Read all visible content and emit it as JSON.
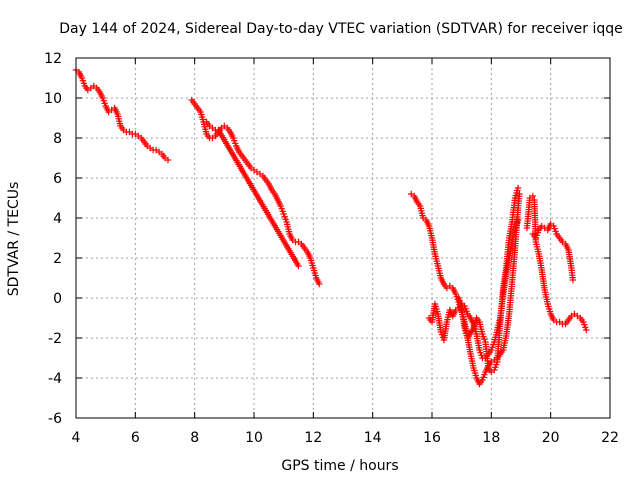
{
  "chart_data": {
    "type": "scatter",
    "title": "Day 144 of 2024, Sidereal Day-to-day VTEC variation (SDTVAR) for receiver iqqe",
    "xlabel": "GPS time / hours",
    "ylabel": "SDTVAR / TECUs",
    "xlim": [
      4,
      22
    ],
    "ylim": [
      -6,
      12
    ],
    "xticks": [
      4,
      6,
      8,
      10,
      12,
      14,
      16,
      18,
      20,
      22
    ],
    "yticks": [
      -6,
      -4,
      -2,
      0,
      2,
      4,
      6,
      8,
      10,
      12
    ],
    "xtick_labels": [
      "4",
      "6",
      "8",
      "10",
      "12",
      "14",
      "16",
      "18",
      "20",
      "22"
    ],
    "ytick_labels": [
      "-6",
      "-4",
      "-2",
      "0",
      "2",
      "4",
      "6",
      "8",
      "10",
      "12"
    ],
    "grid": true,
    "marker": "+",
    "color": "#ff0000",
    "series": [
      {
        "name": "segment-1",
        "points": [
          [
            4.0,
            11.4
          ],
          [
            4.1,
            11.3
          ],
          [
            4.2,
            11.0
          ],
          [
            4.3,
            10.6
          ],
          [
            4.4,
            10.4
          ],
          [
            4.5,
            10.5
          ],
          [
            4.6,
            10.6
          ],
          [
            4.7,
            10.5
          ],
          [
            4.8,
            10.3
          ],
          [
            4.9,
            10.0
          ],
          [
            5.0,
            9.6
          ],
          [
            5.1,
            9.3
          ],
          [
            5.2,
            9.4
          ],
          [
            5.3,
            9.5
          ],
          [
            5.4,
            9.2
          ],
          [
            5.5,
            8.6
          ],
          [
            5.6,
            8.4
          ],
          [
            5.7,
            8.3
          ],
          [
            5.8,
            8.3
          ],
          [
            5.9,
            8.2
          ],
          [
            6.0,
            8.2
          ],
          [
            6.1,
            8.1
          ],
          [
            6.2,
            8.0
          ],
          [
            6.3,
            7.8
          ],
          [
            6.4,
            7.6
          ],
          [
            6.5,
            7.5
          ],
          [
            6.6,
            7.4
          ],
          [
            6.7,
            7.4
          ],
          [
            6.8,
            7.3
          ],
          [
            6.9,
            7.2
          ],
          [
            7.0,
            7.0
          ],
          [
            7.1,
            6.9
          ]
        ]
      },
      {
        "name": "segment-2",
        "points": [
          [
            7.9,
            9.9
          ],
          [
            8.0,
            9.7
          ],
          [
            8.1,
            9.5
          ],
          [
            8.2,
            9.3
          ],
          [
            8.3,
            8.8
          ],
          [
            8.4,
            8.2
          ],
          [
            8.5,
            8.0
          ],
          [
            8.6,
            8.0
          ],
          [
            8.7,
            8.1
          ],
          [
            8.8,
            8.3
          ],
          [
            8.9,
            8.5
          ],
          [
            9.0,
            8.6
          ],
          [
            9.1,
            8.5
          ],
          [
            9.2,
            8.3
          ],
          [
            9.3,
            8.0
          ],
          [
            9.4,
            7.6
          ],
          [
            9.5,
            7.3
          ],
          [
            9.6,
            7.1
          ],
          [
            9.7,
            6.9
          ],
          [
            9.8,
            6.7
          ],
          [
            9.9,
            6.5
          ],
          [
            10.0,
            6.4
          ],
          [
            10.1,
            6.3
          ],
          [
            10.2,
            6.2
          ],
          [
            10.3,
            6.1
          ],
          [
            10.4,
            5.9
          ],
          [
            10.5,
            5.7
          ],
          [
            10.6,
            5.4
          ],
          [
            10.7,
            5.2
          ],
          [
            10.8,
            4.9
          ],
          [
            10.9,
            4.6
          ],
          [
            11.0,
            4.2
          ],
          [
            11.1,
            3.8
          ],
          [
            11.2,
            3.2
          ],
          [
            11.3,
            2.9
          ],
          [
            11.4,
            2.8
          ],
          [
            11.5,
            2.8
          ],
          [
            11.6,
            2.7
          ],
          [
            11.7,
            2.5
          ],
          [
            11.8,
            2.3
          ],
          [
            11.9,
            2.0
          ],
          [
            12.0,
            1.5
          ],
          [
            12.1,
            1.0
          ],
          [
            12.2,
            0.7
          ]
        ]
      },
      {
        "name": "segment-2-branch",
        "points": [
          [
            8.4,
            8.8
          ],
          [
            8.5,
            8.6
          ],
          [
            8.6,
            8.5
          ],
          [
            8.7,
            8.4
          ],
          [
            8.8,
            8.4
          ],
          [
            11.5,
            1.6
          ]
        ]
      },
      {
        "name": "segment-3",
        "points": [
          [
            15.3,
            5.2
          ],
          [
            15.4,
            5.1
          ],
          [
            15.5,
            4.8
          ],
          [
            15.6,
            4.6
          ],
          [
            15.7,
            4.0
          ],
          [
            15.8,
            3.9
          ],
          [
            15.9,
            3.6
          ],
          [
            16.0,
            3.0
          ],
          [
            16.1,
            2.2
          ],
          [
            16.2,
            1.6
          ],
          [
            16.3,
            1.0
          ],
          [
            16.4,
            0.7
          ],
          [
            16.5,
            0.5
          ],
          [
            16.6,
            0.6
          ],
          [
            16.7,
            0.5
          ],
          [
            16.8,
            0.2
          ],
          [
            16.9,
            -0.2
          ],
          [
            17.0,
            -0.7
          ],
          [
            17.1,
            -1.2
          ],
          [
            17.2,
            -2.0
          ],
          [
            17.3,
            -2.8
          ],
          [
            17.4,
            -3.5
          ],
          [
            17.5,
            -4.0
          ],
          [
            17.6,
            -4.3
          ],
          [
            17.7,
            -4.1
          ],
          [
            17.8,
            -3.7
          ],
          [
            17.9,
            -3.4
          ],
          [
            18.0,
            -3.2
          ],
          [
            18.1,
            -3.1
          ],
          [
            18.2,
            -3.0
          ],
          [
            18.3,
            -2.8
          ],
          [
            18.4,
            -2.6
          ],
          [
            18.5,
            -1.9
          ],
          [
            18.6,
            -0.8
          ],
          [
            18.7,
            0.8
          ],
          [
            18.8,
            2.5
          ],
          [
            18.85,
            3.5
          ],
          [
            18.9,
            4.5
          ],
          [
            18.95,
            5.2
          ]
        ]
      },
      {
        "name": "segment-3-lower",
        "points": [
          [
            15.9,
            -1.0
          ],
          [
            16.0,
            -1.2
          ],
          [
            16.1,
            -0.3
          ],
          [
            16.2,
            -0.8
          ],
          [
            16.3,
            -1.7
          ],
          [
            16.4,
            -2.1
          ],
          [
            16.5,
            -1.2
          ],
          [
            16.6,
            -0.6
          ],
          [
            16.7,
            -0.9
          ],
          [
            16.8,
            -0.6
          ],
          [
            16.9,
            -0.5
          ],
          [
            17.0,
            -0.3
          ],
          [
            17.1,
            -0.4
          ],
          [
            17.2,
            -0.8
          ],
          [
            17.3,
            -1.0
          ],
          [
            17.4,
            -1.3
          ],
          [
            17.5,
            -1.8
          ],
          [
            17.6,
            -2.6
          ],
          [
            17.7,
            -3.0
          ],
          [
            17.8,
            -3.0
          ],
          [
            17.9,
            -2.8
          ],
          [
            18.0,
            -2.6
          ],
          [
            18.1,
            -2.2
          ],
          [
            18.2,
            -1.6
          ],
          [
            18.3,
            -1.0
          ],
          [
            18.4,
            0.2
          ],
          [
            18.5,
            1.2
          ],
          [
            18.6,
            2.0
          ],
          [
            18.7,
            2.8
          ],
          [
            18.8,
            3.4
          ],
          [
            18.9,
            3.9
          ]
        ]
      },
      {
        "name": "segment-3-mid",
        "points": [
          [
            16.9,
            0.0
          ],
          [
            17.0,
            -0.5
          ],
          [
            17.1,
            -1.5
          ],
          [
            17.2,
            -2.0
          ],
          [
            17.4,
            -1.5
          ],
          [
            17.5,
            -1.0
          ],
          [
            17.6,
            -1.2
          ],
          [
            17.7,
            -1.8
          ],
          [
            17.8,
            -2.2
          ],
          [
            17.9,
            -3.5
          ],
          [
            18.0,
            -3.7
          ],
          [
            18.1,
            -3.6
          ],
          [
            18.2,
            -3.2
          ],
          [
            18.3,
            -1.2
          ],
          [
            18.4,
            0.5
          ],
          [
            18.5,
            1.5
          ],
          [
            18.6,
            3.0
          ],
          [
            18.7,
            3.8
          ],
          [
            18.8,
            5.0
          ],
          [
            18.9,
            5.5
          ]
        ]
      },
      {
        "name": "segment-4",
        "points": [
          [
            19.2,
            3.5
          ],
          [
            19.3,
            5.0
          ],
          [
            19.4,
            5.1
          ],
          [
            19.45,
            4.9
          ],
          [
            19.5,
            2.8
          ],
          [
            19.6,
            2.2
          ],
          [
            19.7,
            1.4
          ],
          [
            19.8,
            0.4
          ],
          [
            19.9,
            -0.3
          ],
          [
            20.0,
            -0.8
          ],
          [
            20.1,
            -1.1
          ],
          [
            20.2,
            -1.2
          ],
          [
            20.3,
            -1.2
          ],
          [
            20.4,
            -1.3
          ],
          [
            20.5,
            -1.3
          ],
          [
            20.6,
            -1.1
          ],
          [
            20.7,
            -0.9
          ],
          [
            20.8,
            -0.8
          ],
          [
            20.9,
            -0.9
          ],
          [
            21.0,
            -1.0
          ],
          [
            21.1,
            -1.2
          ],
          [
            21.2,
            -1.6
          ]
        ]
      },
      {
        "name": "segment-4-upper",
        "points": [
          [
            19.4,
            3.2
          ],
          [
            19.5,
            3.0
          ],
          [
            19.6,
            3.4
          ],
          [
            19.7,
            3.6
          ],
          [
            19.8,
            3.5
          ],
          [
            19.9,
            3.4
          ],
          [
            20.0,
            3.7
          ],
          [
            20.1,
            3.6
          ],
          [
            20.2,
            3.2
          ],
          [
            20.3,
            3.0
          ],
          [
            20.4,
            2.8
          ],
          [
            20.5,
            2.7
          ],
          [
            20.6,
            2.4
          ],
          [
            20.7,
            1.5
          ],
          [
            20.75,
            0.9
          ]
        ]
      }
    ]
  }
}
